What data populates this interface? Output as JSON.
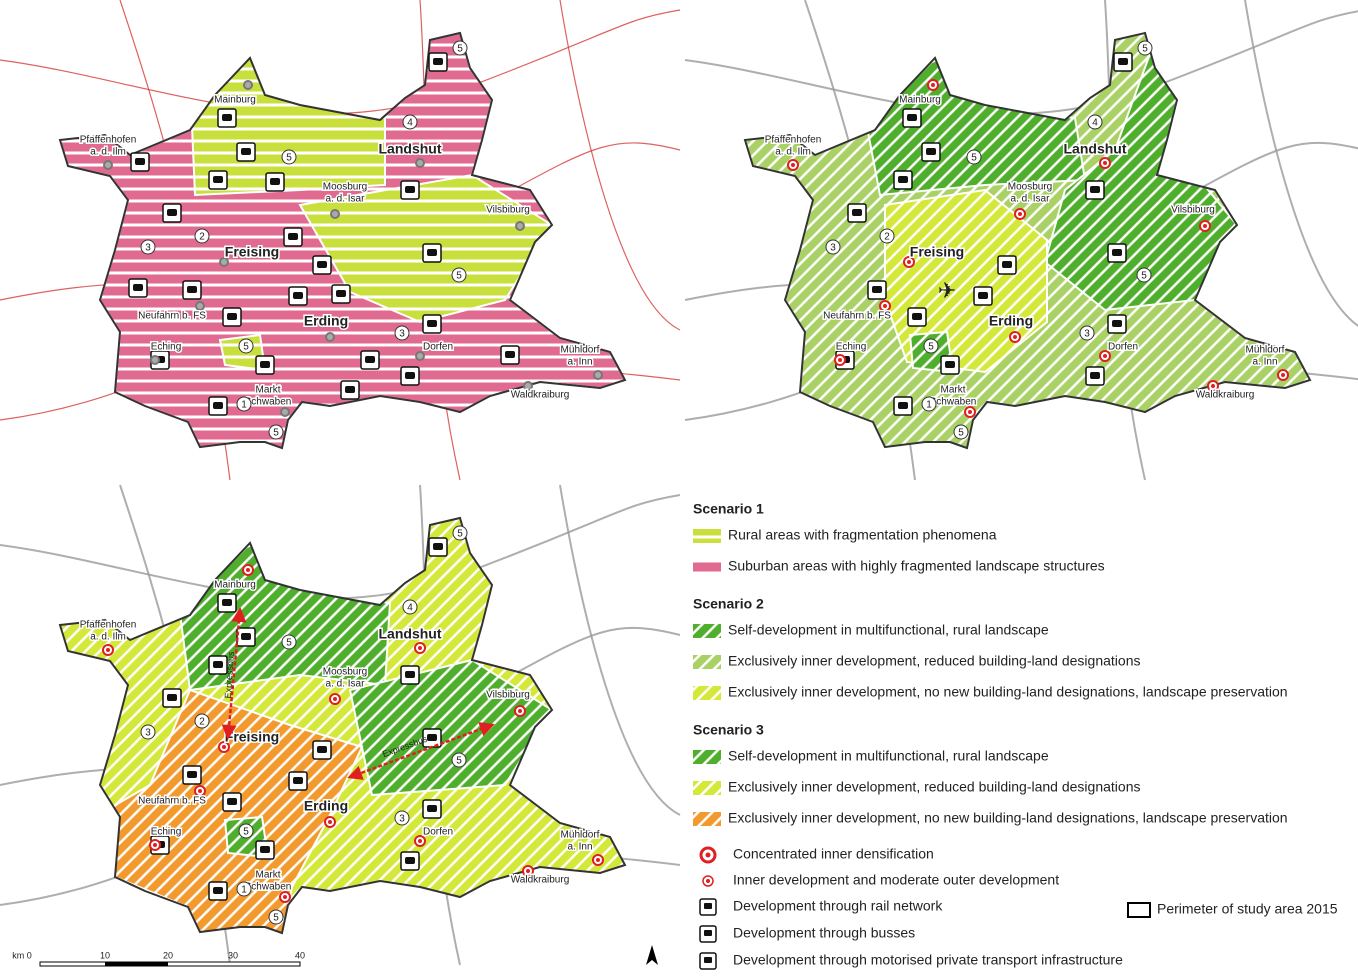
{
  "place_names": [
    [
      "Pfaffenhofen",
      "a. d. Ilm"
    ],
    [
      "Mainburg"
    ],
    [
      "Landshut"
    ],
    [
      "Moosburg",
      "a. d. Isar"
    ],
    [
      "Vilsbiburg"
    ],
    [
      "Freising"
    ],
    [
      "Neufahrn b. FS"
    ],
    [
      "Erding"
    ],
    [
      "Eching"
    ],
    [
      "Dorfen"
    ],
    [
      "Mühldorf",
      "a. Inn"
    ],
    [
      "Markt",
      "Schwaben"
    ],
    [
      "Waldkraiburg"
    ]
  ],
  "route_numbers": [
    "5",
    "4",
    "5",
    "2",
    "3",
    "5",
    "3",
    "5",
    "1",
    "5"
  ],
  "expressbus_labels": [
    "Expressbus",
    "Expressbus"
  ],
  "legend": {
    "scenarios": [
      {
        "title": "Scenario 1",
        "items": [
          "Rural areas with fragmentation phenomena",
          "Suburban areas with highly fragmented landscape structures"
        ]
      },
      {
        "title": "Scenario 2",
        "items": [
          "Self-development in multifunctional, rural landscape",
          "Exclusively inner development, reduced building-land designations",
          "Exclusively inner development, no new building-land designations, landscape preservation"
        ]
      },
      {
        "title": "Scenario 3",
        "items": [
          "Self-development in multifunctional, rural landscape",
          "Exclusively inner development, reduced building-land designations",
          "Exclusively inner development, no new building-land designations, landscape preservation"
        ]
      }
    ],
    "symbols": [
      "Concentrated inner densification",
      "Inner development and moderate outer development",
      "Development through rail network",
      "Development through busses",
      "Development through motorised private transport infrastructure"
    ],
    "perimeter": "Perimeter of study area 2015"
  },
  "scale_labels": [
    "km 0",
    "10",
    "20",
    "30",
    "40"
  ]
}
